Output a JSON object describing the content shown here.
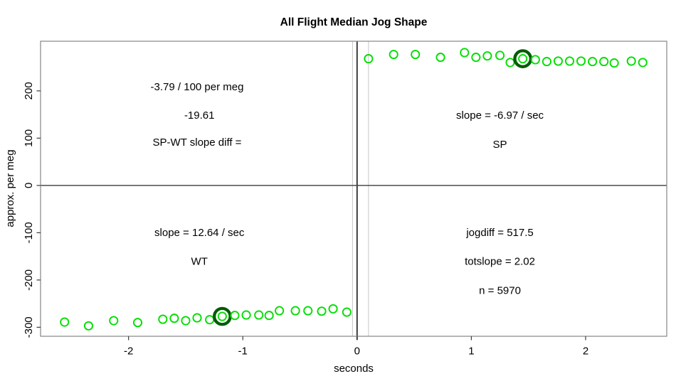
{
  "chart_data": {
    "type": "scatter",
    "title": "All Flight Median Jog Shape",
    "xlabel": "seconds",
    "ylabel": "approx. per meg",
    "xlim": [
      -2.77,
      2.71
    ],
    "ylim": [
      -319,
      305
    ],
    "x_ticks": [
      -2,
      -1,
      0,
      1,
      2
    ],
    "y_ticks": [
      -300,
      -200,
      -100,
      0,
      100,
      200
    ],
    "grid": false,
    "legend": "none",
    "point_color": "#00de00",
    "highlight_ring_color": "#005c00",
    "box_color": "#858585",
    "zero_line_color": "#3d3d3d",
    "guide_line_color": "#c6c6c6",
    "hline_y": 0,
    "vlines": [
      {
        "x": -0.04,
        "color": "#c6c6c6",
        "width": 1
      },
      {
        "x": 0.0,
        "color": "#3d3d3d",
        "width": 2
      },
      {
        "x": 0.1,
        "color": "#c6c6c6",
        "width": 1
      }
    ],
    "series": [
      {
        "name": "WT",
        "highlight_index": 9,
        "points": [
          [
            -2.56,
            -289
          ],
          [
            -2.35,
            -297
          ],
          [
            -2.13,
            -286
          ],
          [
            -1.92,
            -290
          ],
          [
            -1.7,
            -283
          ],
          [
            -1.6,
            -281
          ],
          [
            -1.5,
            -286
          ],
          [
            -1.4,
            -280
          ],
          [
            -1.29,
            -284
          ],
          [
            -1.18,
            -277
          ],
          [
            -1.07,
            -275
          ],
          [
            -0.97,
            -274
          ],
          [
            -0.86,
            -274
          ],
          [
            -0.77,
            -275
          ],
          [
            -0.68,
            -265
          ],
          [
            -0.54,
            -265
          ],
          [
            -0.43,
            -265
          ],
          [
            -0.31,
            -266
          ],
          [
            -0.21,
            -261
          ],
          [
            -0.09,
            -268
          ]
        ]
      },
      {
        "name": "SP",
        "highlight_index": 9,
        "points": [
          [
            0.1,
            268
          ],
          [
            0.32,
            277
          ],
          [
            0.51,
            277
          ],
          [
            0.73,
            271
          ],
          [
            0.94,
            281
          ],
          [
            1.04,
            271
          ],
          [
            1.14,
            274
          ],
          [
            1.25,
            275
          ],
          [
            1.34,
            260
          ],
          [
            1.45,
            268
          ],
          [
            1.56,
            266
          ],
          [
            1.66,
            262
          ],
          [
            1.76,
            263
          ],
          [
            1.86,
            263
          ],
          [
            1.96,
            263
          ],
          [
            2.06,
            262
          ],
          [
            2.16,
            262
          ],
          [
            2.25,
            259
          ],
          [
            2.4,
            263
          ],
          [
            2.5,
            260
          ]
        ]
      }
    ],
    "annotations": [
      {
        "text": "-3.79 / 100 per meg",
        "x": -1.4,
        "y": 209,
        "size": 15
      },
      {
        "text": "-19.61",
        "x": -1.38,
        "y": 149,
        "size": 15
      },
      {
        "text": "SP-WT slope diff =",
        "x": -1.4,
        "y": 92,
        "size": 15
      },
      {
        "text": "slope = -6.97 / sec",
        "x": 1.25,
        "y": 149,
        "size": 15
      },
      {
        "text": "SP",
        "x": 1.25,
        "y": 87,
        "size": 22
      },
      {
        "text": "slope = 12.64 / sec",
        "x": -1.38,
        "y": -99,
        "size": 15
      },
      {
        "text": "WT",
        "x": -1.38,
        "y": -160,
        "size": 22
      },
      {
        "text": "jogdiff = 517.5",
        "x": 1.25,
        "y": -99,
        "size": 15
      },
      {
        "text": "totslope = 2.02",
        "x": 1.25,
        "y": -160,
        "size": 15
      },
      {
        "text": "n = 5970",
        "x": 1.25,
        "y": -222,
        "size": 15
      }
    ]
  }
}
